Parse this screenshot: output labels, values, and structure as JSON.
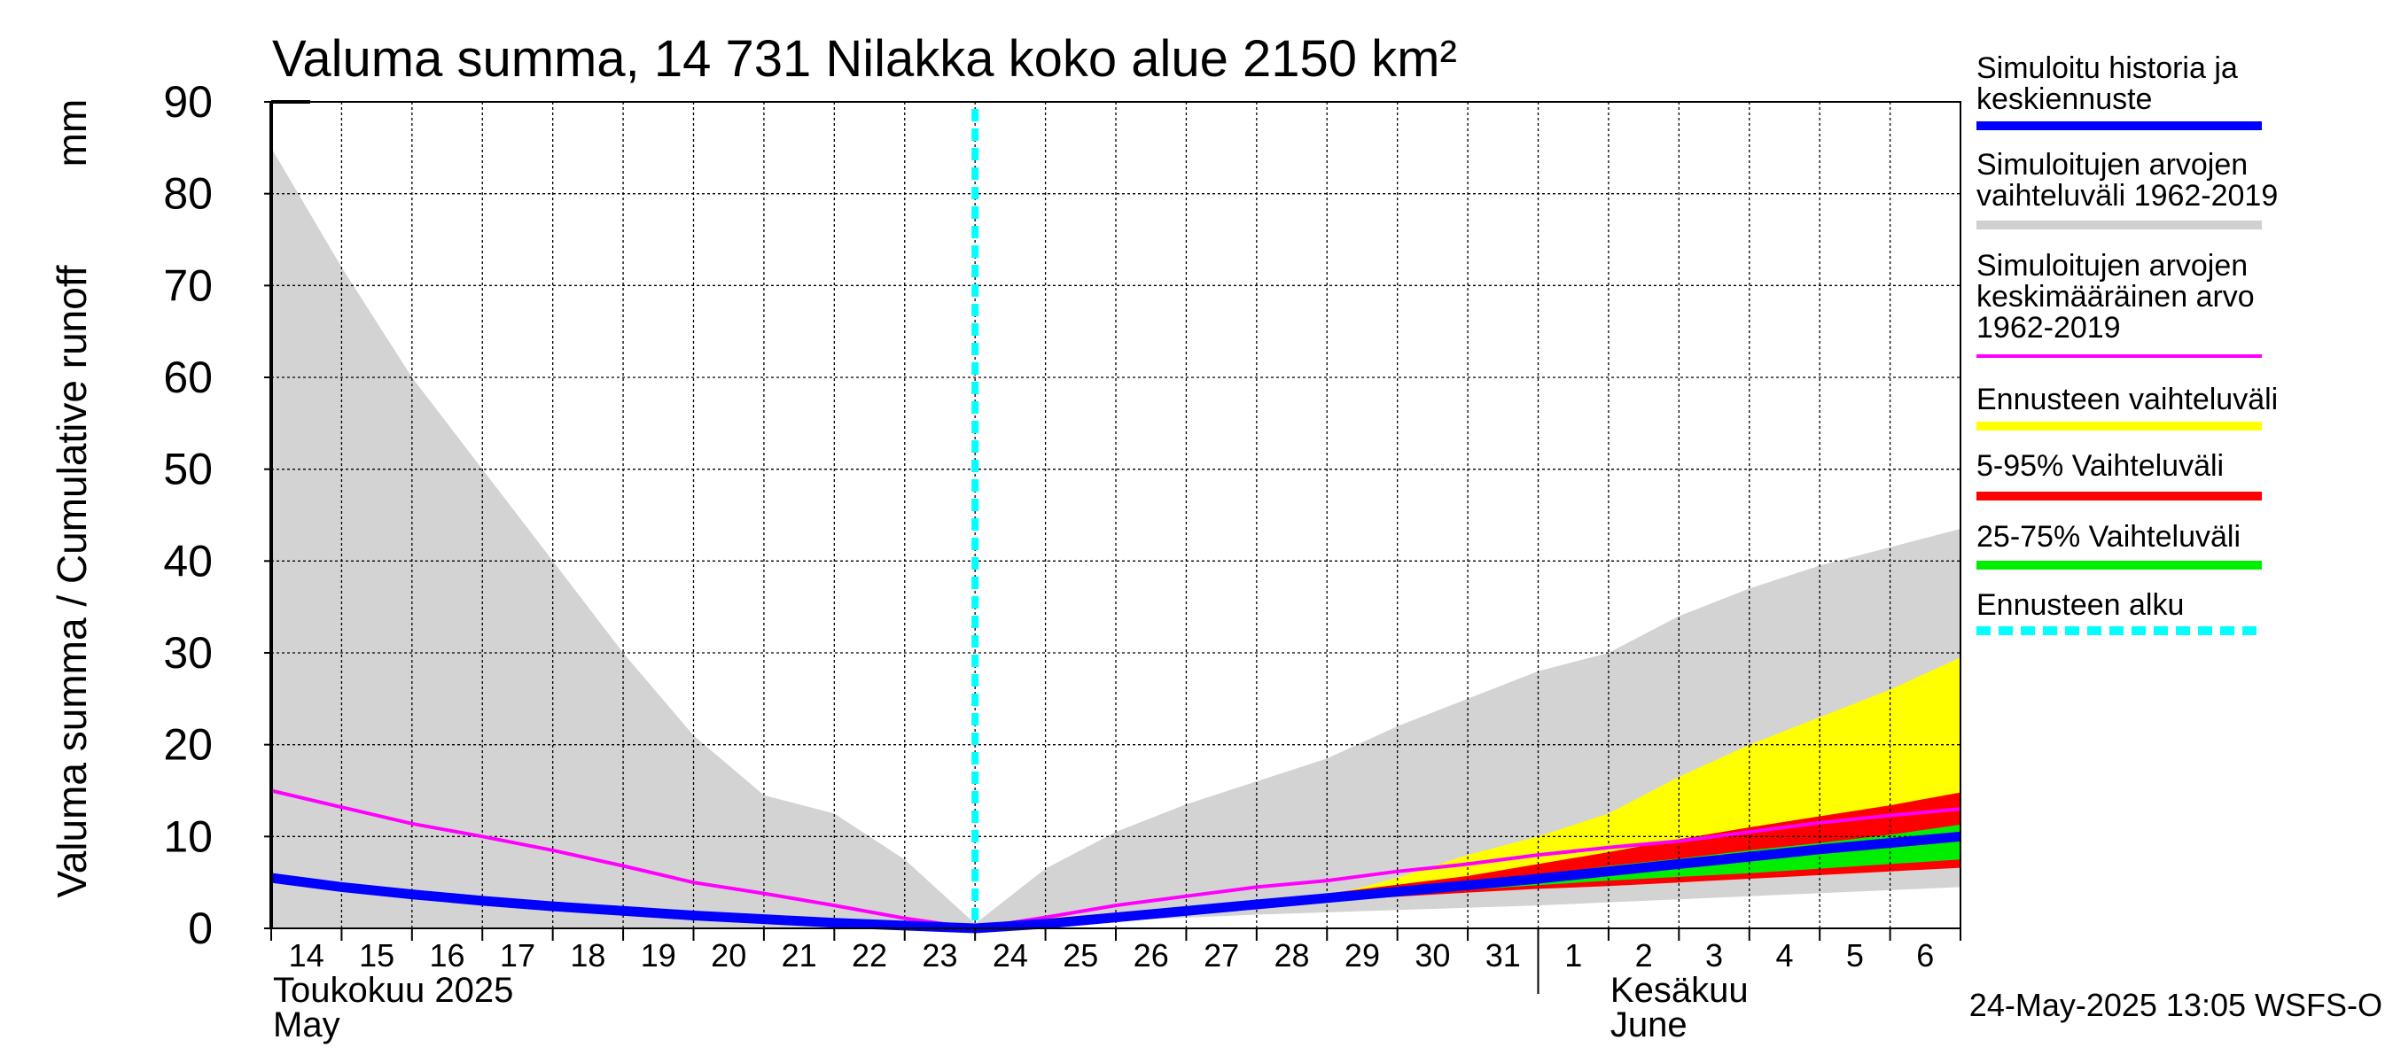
{
  "chart_data": {
    "type": "area",
    "title": "Valuma summa, 14 731 Nilakka koko alue 2150 km²",
    "ylabel": "Valuma summa / Cumulative runoff",
    "yunit": "mm",
    "ylim": [
      0,
      90
    ],
    "yticks": [
      0,
      10,
      20,
      30,
      40,
      50,
      60,
      70,
      80,
      90
    ],
    "xlim": [
      0,
      24
    ],
    "day_labels": [
      "14",
      "15",
      "16",
      "17",
      "18",
      "19",
      "20",
      "21",
      "22",
      "23",
      "24",
      "25",
      "26",
      "27",
      "28",
      "29",
      "30",
      "31",
      "1",
      "2",
      "3",
      "4",
      "5",
      "6"
    ],
    "month_labels": [
      {
        "line1": "Toukokuu  2025",
        "line2": "May",
        "day": 0
      },
      {
        "line1": "Kesäkuu",
        "line2": "June",
        "day": 19
      }
    ],
    "june_start_day": 18,
    "forecast_start_day": 10,
    "footer": "24-May-2025 13:05 WSFS-O",
    "legend": [
      {
        "label": "Simuloitu historia ja\nkeskiennuste",
        "color": "#0000ff",
        "style": "line"
      },
      {
        "label": "Simuloitujen arvojen\nvaihteluväli 1962-2019",
        "color": "#d0d0d0",
        "style": "line"
      },
      {
        "label": "Simuloitujen arvojen\nkeskimääräinen arvo\n   1962-2019",
        "color": "#ff00ff",
        "style": "thin"
      },
      {
        "label": "Ennusteen vaihteluväli",
        "color": "#ffff00",
        "style": "line"
      },
      {
        "label": "5-95% Vaihteluväli",
        "color": "#ff0000",
        "style": "line"
      },
      {
        "label": "25-75% Vaihteluväli",
        "color": "#00ee00",
        "style": "line"
      },
      {
        "label": "Ennusteen alku",
        "color": "#00ffff",
        "style": "dashed"
      }
    ],
    "series": {
      "hist_range_upper": {
        "x": [
          0,
          1,
          2,
          3,
          4,
          5,
          6,
          7,
          8,
          9,
          10,
          11,
          12,
          13,
          14,
          15,
          16,
          17,
          18,
          19,
          20,
          21,
          22,
          23,
          24
        ],
        "y": [
          85,
          72,
          60,
          50,
          40,
          30,
          21,
          14.5,
          12.5,
          7.5,
          0.5,
          6.5,
          10.5,
          13.5,
          16,
          18.5,
          22,
          25,
          28,
          30,
          34,
          37,
          39.5,
          41.5,
          43.5
        ]
      },
      "hist_range_lower": {
        "x": [
          0,
          10,
          11,
          14,
          18,
          24
        ],
        "y": [
          0,
          0,
          0.5,
          1.5,
          2.5,
          4.5
        ]
      },
      "ennuste_upper": {
        "x": [
          10,
          15,
          16,
          17,
          18,
          19,
          20,
          21,
          22,
          23,
          24
        ],
        "y": [
          0.5,
          3.5,
          5.5,
          8,
          10,
          12.5,
          16.5,
          20,
          23,
          26,
          29.5
        ]
      },
      "ennuste_lower": {
        "x": [
          10,
          15,
          16,
          17,
          18,
          19,
          20,
          21,
          22,
          23,
          24
        ],
        "y": [
          0.2,
          3,
          3.8,
          4.3,
          4.8,
          5.2,
          5.6,
          6,
          6.4,
          6.8,
          7.2
        ]
      },
      "p5_95_upper": {
        "x": [
          10,
          15,
          17,
          18,
          19,
          20,
          21,
          22,
          23,
          24
        ],
        "y": [
          0.3,
          3.8,
          5.7,
          7,
          8.3,
          9.7,
          11,
          12.2,
          13.4,
          14.8
        ]
      },
      "p5_95_lower": {
        "x": [
          10,
          15,
          17,
          18,
          19,
          20,
          21,
          22,
          23,
          24
        ],
        "y": [
          0.2,
          3,
          3.9,
          4.3,
          4.6,
          5,
          5.4,
          5.8,
          6.2,
          6.6
        ]
      },
      "p25_75_upper": {
        "x": [
          10,
          15,
          17,
          18,
          19,
          20,
          21,
          22,
          23,
          24
        ],
        "y": [
          0.25,
          3.5,
          5,
          5.8,
          6.8,
          7.6,
          8.5,
          9.3,
          10.2,
          11.3
        ]
      },
      "p25_75_lower": {
        "x": [
          10,
          15,
          17,
          18,
          19,
          20,
          21,
          22,
          23,
          24
        ],
        "y": [
          0.22,
          3.2,
          4.2,
          4.7,
          5.2,
          5.6,
          6,
          6.5,
          7,
          7.5
        ]
      },
      "mean_1962_2019": {
        "x": [
          0,
          1,
          2,
          3,
          4,
          5,
          6,
          7,
          8,
          9,
          10,
          11,
          12,
          13,
          14,
          15,
          16,
          17,
          18,
          19,
          20,
          21,
          22,
          23,
          24
        ],
        "y": [
          15,
          13.2,
          11.4,
          10,
          8.5,
          6.8,
          5,
          3.8,
          2.5,
          1.1,
          0,
          1.2,
          2.5,
          3.5,
          4.5,
          5.2,
          6.2,
          7,
          8,
          8.8,
          9.5,
          10.5,
          11.5,
          12.3,
          13
        ]
      },
      "median_forecast": {
        "x": [
          0,
          1,
          2,
          3,
          4,
          5,
          6,
          7,
          8,
          9,
          10,
          11,
          12,
          13,
          14,
          15,
          16,
          17,
          18,
          19,
          20,
          21,
          22,
          23,
          24
        ],
        "y": [
          5.5,
          4.5,
          3.7,
          3,
          2.4,
          1.9,
          1.4,
          1,
          0.6,
          0.3,
          0,
          0.5,
          1.2,
          1.9,
          2.6,
          3.3,
          4,
          4.7,
          5.4,
          6.2,
          7,
          7.8,
          8.6,
          9.3,
          10
        ]
      }
    }
  }
}
